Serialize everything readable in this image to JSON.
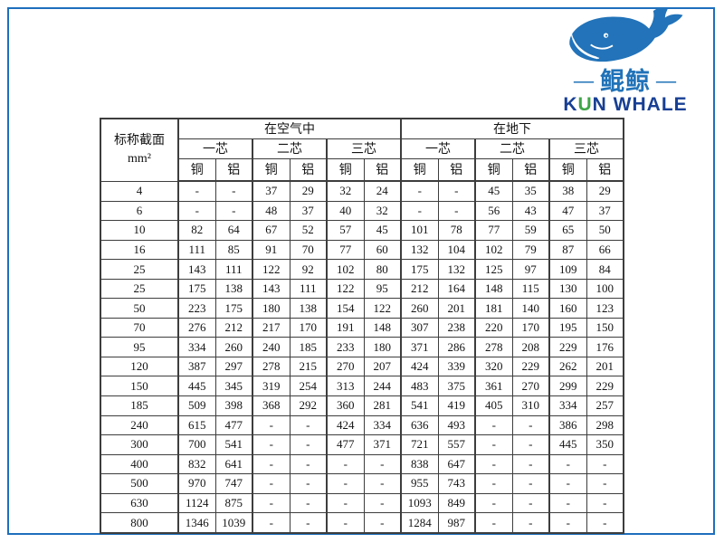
{
  "page": {
    "border_color": "#1E6FBD"
  },
  "logo": {
    "dash": "—",
    "cn": "鲲鲸",
    "en_k": "K",
    "en_u": "U",
    "en_rest": "N WHALE",
    "whale_color": "#2273B9",
    "cn_color": "#2173B8",
    "en_color": "#173F94",
    "u_color": "#3FA648"
  },
  "table": {
    "corner_line1": "标称截面",
    "corner_line2": "mm²",
    "group_air": "在空气中",
    "group_ground": "在地下",
    "cores": [
      "一芯",
      "二芯",
      "三芯"
    ],
    "materials": [
      "铜",
      "铝"
    ],
    "rows": [
      {
        "size": "4",
        "values": [
          "-",
          "-",
          "37",
          "29",
          "32",
          "24",
          "-",
          "-",
          "45",
          "35",
          "38",
          "29"
        ]
      },
      {
        "size": "6",
        "values": [
          "-",
          "-",
          "48",
          "37",
          "40",
          "32",
          "-",
          "-",
          "56",
          "43",
          "47",
          "37"
        ]
      },
      {
        "size": "10",
        "values": [
          "82",
          "64",
          "67",
          "52",
          "57",
          "45",
          "101",
          "78",
          "77",
          "59",
          "65",
          "50"
        ]
      },
      {
        "size": "16",
        "values": [
          "111",
          "85",
          "91",
          "70",
          "77",
          "60",
          "132",
          "104",
          "102",
          "79",
          "87",
          "66"
        ]
      },
      {
        "size": "25",
        "values": [
          "143",
          "111",
          "122",
          "92",
          "102",
          "80",
          "175",
          "132",
          "125",
          "97",
          "109",
          "84"
        ]
      },
      {
        "size": "25",
        "values": [
          "175",
          "138",
          "143",
          "111",
          "122",
          "95",
          "212",
          "164",
          "148",
          "115",
          "130",
          "100"
        ]
      },
      {
        "size": "50",
        "values": [
          "223",
          "175",
          "180",
          "138",
          "154",
          "122",
          "260",
          "201",
          "181",
          "140",
          "160",
          "123"
        ]
      },
      {
        "size": "70",
        "values": [
          "276",
          "212",
          "217",
          "170",
          "191",
          "148",
          "307",
          "238",
          "220",
          "170",
          "195",
          "150"
        ]
      },
      {
        "size": "95",
        "values": [
          "334",
          "260",
          "240",
          "185",
          "233",
          "180",
          "371",
          "286",
          "278",
          "208",
          "229",
          "176"
        ]
      },
      {
        "size": "120",
        "values": [
          "387",
          "297",
          "278",
          "215",
          "270",
          "207",
          "424",
          "339",
          "320",
          "229",
          "262",
          "201"
        ]
      },
      {
        "size": "150",
        "values": [
          "445",
          "345",
          "319",
          "254",
          "313",
          "244",
          "483",
          "375",
          "361",
          "270",
          "299",
          "229"
        ]
      },
      {
        "size": "185",
        "values": [
          "509",
          "398",
          "368",
          "292",
          "360",
          "281",
          "541",
          "419",
          "405",
          "310",
          "334",
          "257"
        ]
      },
      {
        "size": "240",
        "values": [
          "615",
          "477",
          "-",
          "-",
          "424",
          "334",
          "636",
          "493",
          "-",
          "-",
          "386",
          "298"
        ]
      },
      {
        "size": "300",
        "values": [
          "700",
          "541",
          "-",
          "-",
          "477",
          "371",
          "721",
          "557",
          "-",
          "-",
          "445",
          "350"
        ]
      },
      {
        "size": "400",
        "values": [
          "832",
          "641",
          "-",
          "-",
          "-",
          "-",
          "838",
          "647",
          "-",
          "-",
          "-",
          "-"
        ]
      },
      {
        "size": "500",
        "values": [
          "970",
          "747",
          "-",
          "-",
          "-",
          "-",
          "955",
          "743",
          "-",
          "-",
          "-",
          "-"
        ]
      },
      {
        "size": "630",
        "values": [
          "1124",
          "875",
          "-",
          "-",
          "-",
          "-",
          "1093",
          "849",
          "-",
          "-",
          "-",
          "-"
        ]
      },
      {
        "size": "800",
        "values": [
          "1346",
          "1039",
          "-",
          "-",
          "-",
          "-",
          "1284",
          "987",
          "-",
          "-",
          "-",
          "-"
        ]
      }
    ]
  }
}
